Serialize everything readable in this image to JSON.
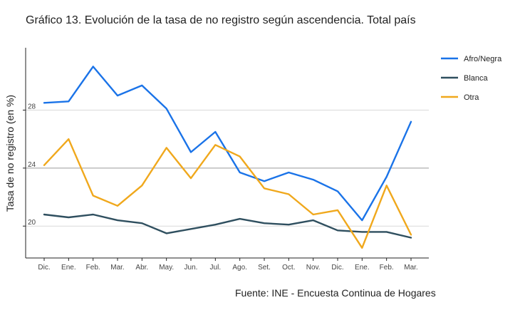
{
  "chart_title": "Gráfico 13. Evolución de la tasa de no registro según ascendencia. Total país",
  "source_note": "Fuente: INE - Encuesta Continua de Hogares",
  "chart_data": {
    "type": "line",
    "title": "Gráfico 13. Evolución de la tasa de no registro según ascendencia. Total país",
    "xlabel": "",
    "ylabel": "Tasa de no registro (en %)",
    "categories": [
      "Dic.",
      "Ene.",
      "Feb.",
      "Mar.",
      "Abr.",
      "May.",
      "Jun.",
      "Jul.",
      "Ago.",
      "Set.",
      "Oct.",
      "Nov.",
      "Dic.",
      "Ene.",
      "Feb.",
      "Mar."
    ],
    "yticks": [
      20,
      24,
      28
    ],
    "ylim": [
      17.8,
      32.3
    ],
    "grid": "horizontal",
    "legend_position": "right",
    "series": [
      {
        "name": "Afro/Negra",
        "color": "#1a73e8",
        "values": [
          28.5,
          28.6,
          31.0,
          29.0,
          29.7,
          28.1,
          25.1,
          26.5,
          23.7,
          23.1,
          23.7,
          23.2,
          22.4,
          20.4,
          23.4,
          27.2
        ]
      },
      {
        "name": "Blanca",
        "color": "#2f4f5f",
        "values": [
          20.8,
          20.6,
          20.8,
          20.4,
          20.2,
          19.5,
          19.8,
          20.1,
          20.5,
          20.2,
          20.1,
          20.4,
          19.7,
          19.6,
          19.6,
          19.2
        ]
      },
      {
        "name": "Otra",
        "color": "#f0a81c",
        "values": [
          24.2,
          26.0,
          22.1,
          21.4,
          22.8,
          25.4,
          23.3,
          25.6,
          24.8,
          22.6,
          22.2,
          20.8,
          21.1,
          18.5,
          22.8,
          19.4
        ]
      }
    ]
  }
}
